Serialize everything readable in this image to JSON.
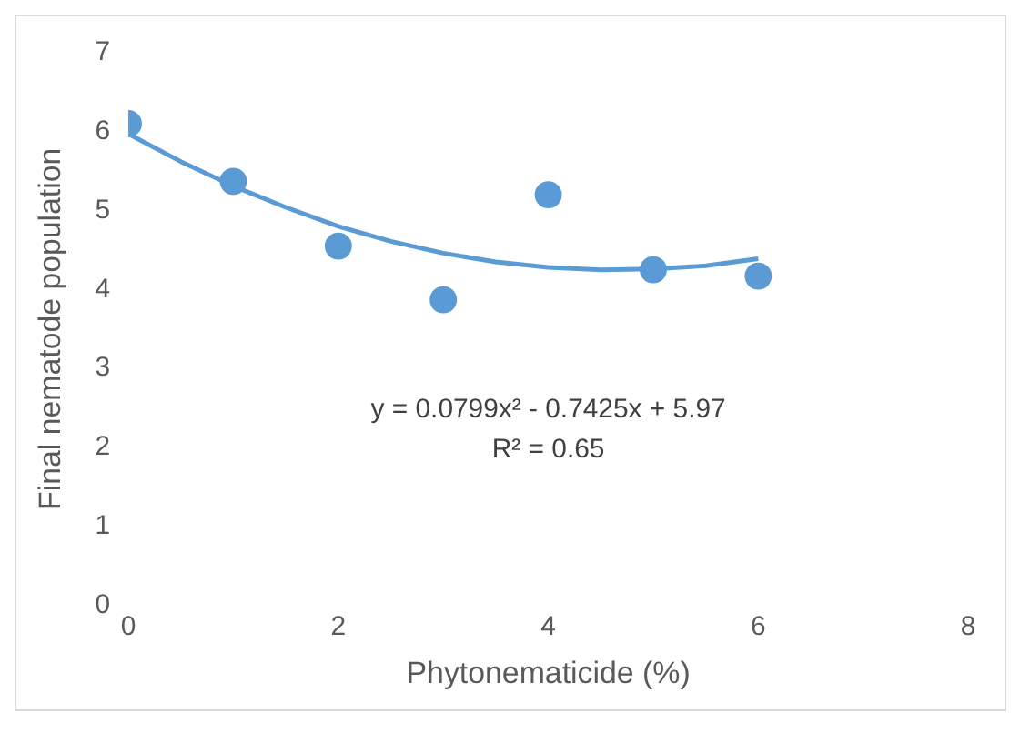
{
  "chart_data": {
    "type": "scatter",
    "xlabel": "Phytonematicide (%)",
    "ylabel": "Final nematode population",
    "x": [
      0,
      1,
      2,
      3,
      4,
      5,
      6
    ],
    "series": [
      {
        "color": "#5b9bd5",
        "values": [
          6.1,
          5.37,
          4.55,
          3.87,
          5.2,
          4.25,
          4.17
        ]
      },
      {
        "type": "line",
        "marker": "none",
        "color": "#5b9bd5",
        "x": [
          0,
          0.5,
          1,
          1.5,
          2,
          2.5,
          3,
          3.5,
          4,
          4.5,
          5,
          5.5,
          6
        ],
        "values": [
          5.97,
          5.62,
          5.31,
          5.04,
          4.8,
          4.61,
          4.46,
          4.35,
          4.28,
          4.25,
          4.26,
          4.3,
          4.39
        ]
      }
    ],
    "xlim": [
      0,
      8
    ],
    "xticks": [
      0,
      2,
      4,
      6,
      8
    ],
    "ylim": [
      0,
      7
    ],
    "yticks": [
      0,
      1,
      2,
      3,
      4,
      5,
      6,
      7
    ],
    "grid": false,
    "legend": false,
    "marker": "circle",
    "annotations": [
      "y = 0.0799x² - 0.7425x + 5.97",
      "R² = 0.65"
    ]
  }
}
